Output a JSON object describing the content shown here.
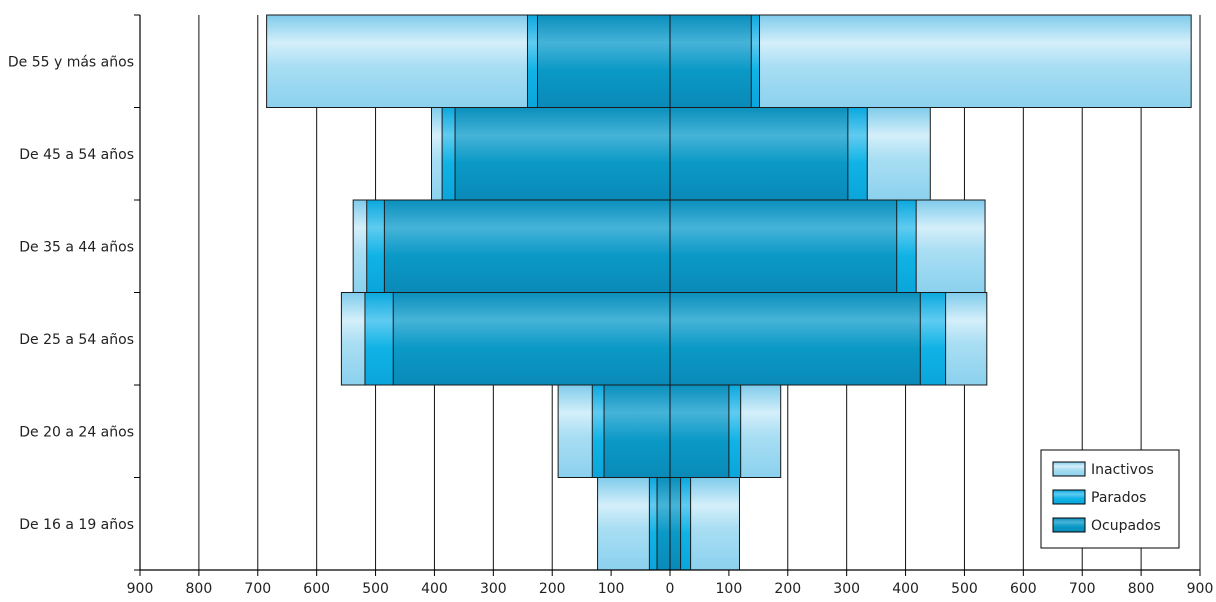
{
  "chart_data": {
    "type": "bar",
    "orientation": "horizontal",
    "layout": "population-pyramid",
    "categories": [
      "De 55 y más años",
      "De 45 a 54 años",
      "De 35 a 44 años",
      "De 25 a 54 años",
      "De 20 a 24 años",
      "De 16 a 19 años"
    ],
    "series": [
      {
        "name": "Ocupados",
        "left": [
          225,
          365,
          485,
          470,
          112,
          22
        ],
        "right": [
          138,
          302,
          385,
          425,
          100,
          18
        ],
        "color": "#0aa0cd"
      },
      {
        "name": "Parados",
        "left": [
          242,
          387,
          515,
          518,
          132,
          35
        ],
        "right": [
          152,
          335,
          418,
          468,
          120,
          35
        ],
        "color": "#0ab4e6"
      },
      {
        "name": "Inactivos",
        "left": [
          685,
          405,
          538,
          558,
          190,
          123
        ],
        "right": [
          885,
          442,
          535,
          538,
          188,
          118
        ],
        "color": "#9fdaf2"
      }
    ],
    "xlim": [
      -900,
      900
    ],
    "xticks": [
      -900,
      -800,
      -700,
      -600,
      -500,
      -400,
      -300,
      -200,
      -100,
      0,
      100,
      200,
      300,
      400,
      500,
      600,
      700,
      800,
      900
    ],
    "tick_labels": [
      "900",
      "800",
      "700",
      "600",
      "500",
      "400",
      "300",
      "200",
      "100",
      "0",
      "100",
      "200",
      "300",
      "400",
      "500",
      "600",
      "700",
      "800",
      "900"
    ],
    "grid": "vertical",
    "legend": {
      "position": "bottom-right",
      "entries": [
        "Inactivos",
        "Parados",
        "Ocupados"
      ]
    }
  }
}
